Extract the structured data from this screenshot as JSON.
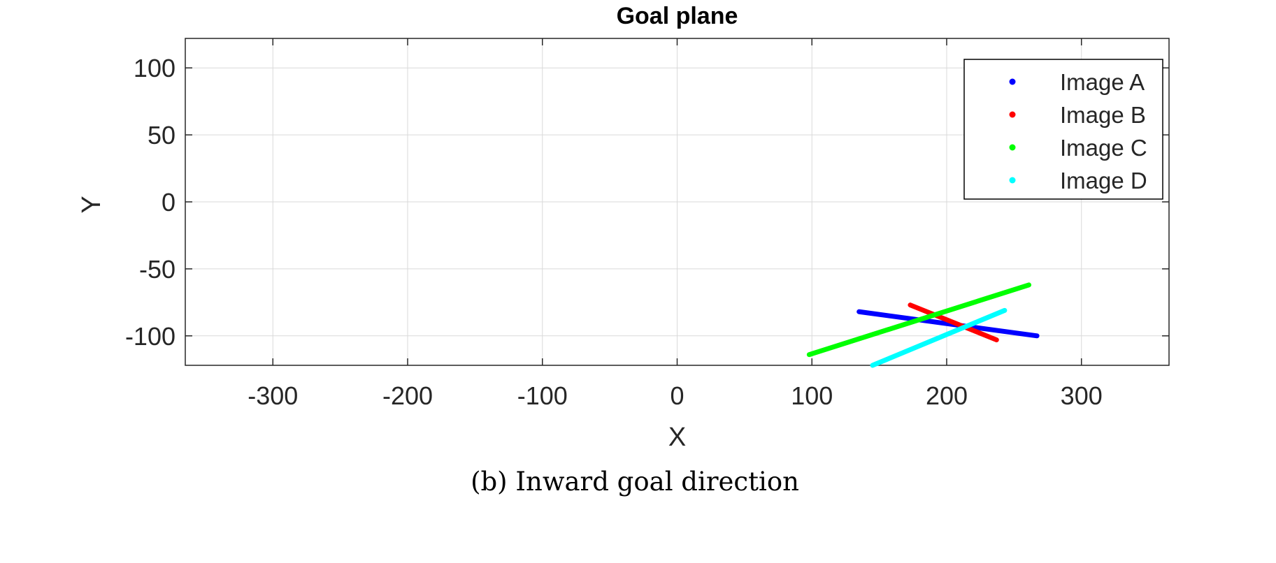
{
  "chart_data": {
    "type": "scatter",
    "title": "Goal plane",
    "xlabel": "X",
    "ylabel": "Y",
    "xlim": [
      -365,
      365
    ],
    "ylim": [
      -122,
      122
    ],
    "xticks": [
      -300,
      -200,
      -100,
      0,
      100,
      200,
      300
    ],
    "xtick_labels": [
      "-300",
      "-200",
      "-100",
      "0",
      "100",
      "200",
      "300"
    ],
    "yticks": [
      100,
      50,
      0,
      -50,
      -100
    ],
    "ytick_labels": [
      "100",
      "50",
      "0",
      "-50",
      "-100"
    ],
    "grid": true,
    "legend_position": "top-right",
    "series": [
      {
        "name": "Image A",
        "color": "#0000ff",
        "segment": [
          [
            135,
            -82
          ],
          [
            267,
            -100
          ]
        ]
      },
      {
        "name": "Image B",
        "color": "#ff0000",
        "segment": [
          [
            173,
            -77
          ],
          [
            237,
            -103
          ]
        ]
      },
      {
        "name": "Image C",
        "color": "#00ff00",
        "segment": [
          [
            98,
            -114
          ],
          [
            261,
            -62
          ]
        ]
      },
      {
        "name": "Image D",
        "color": "#00ffff",
        "segment": [
          [
            145,
            -122
          ],
          [
            243,
            -81
          ]
        ]
      }
    ]
  },
  "caption": "(b) Inward goal direction"
}
